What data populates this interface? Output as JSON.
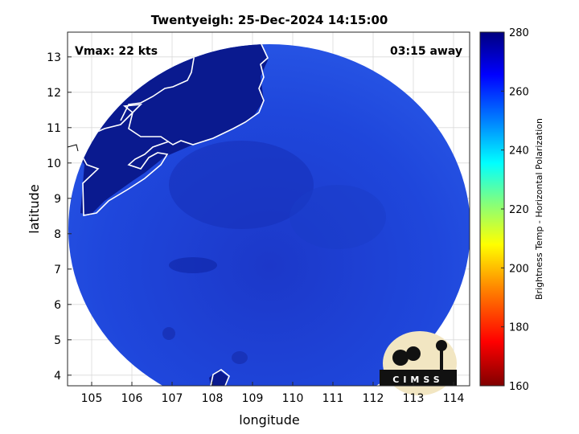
{
  "chart_data": {
    "type": "heatmap",
    "title": "Twentyeigh: 25-Dec-2024 14:15:00",
    "xlabel": "longitude",
    "ylabel": "latitude",
    "xlim": [
      104.4,
      114.4
    ],
    "ylim": [
      3.7,
      13.7
    ],
    "xticks": [
      105,
      106,
      107,
      108,
      109,
      110,
      111,
      112,
      113,
      114
    ],
    "yticks": [
      4,
      5,
      6,
      7,
      8,
      9,
      10,
      11,
      12,
      13
    ],
    "grid": true,
    "annotations": {
      "vmax": "Vmax: 22 kts",
      "time_away": "03:15 away"
    },
    "colorbar": {
      "label": "Brightness Temp - Horizontal Polarization",
      "range": [
        160,
        280
      ],
      "ticks": [
        160,
        180,
        200,
        220,
        240,
        260,
        280
      ],
      "colormap": [
        "#800000",
        "#ff0000",
        "#ff8000",
        "#ffff00",
        "#80ff80",
        "#00ffff",
        "#0080ff",
        "#0000ff",
        "#00007f"
      ]
    },
    "field": {
      "land_temp": 274,
      "ocean_temp": 258,
      "land_color": "#0a1a8f",
      "ocean_color": "#1e3fd6"
    },
    "logo_text": "CIMSS"
  }
}
